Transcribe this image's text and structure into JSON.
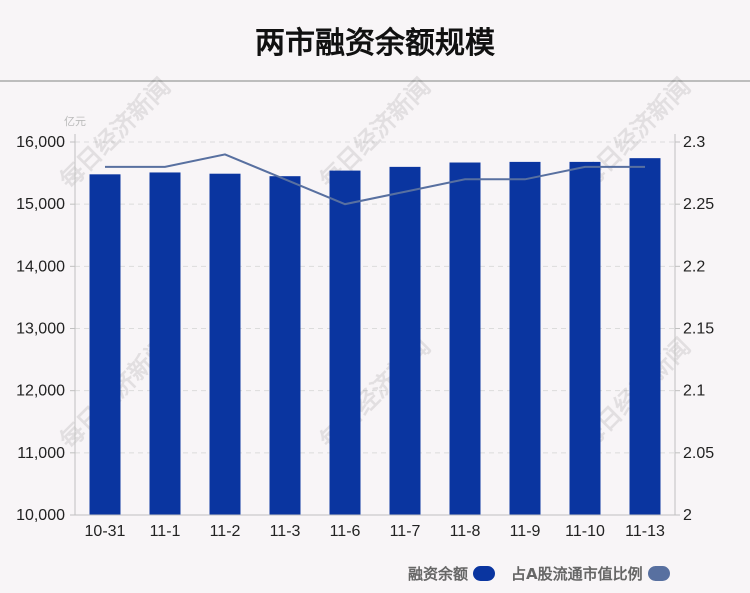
{
  "header": {
    "title": "两市融资余额规模"
  },
  "colors": {
    "bar": "#0a35a0",
    "line": "#5870a0",
    "grid": "#dcdcdc",
    "axis": "#c0c0c0"
  },
  "chart_data": {
    "type": "bar+line",
    "title": "两市融资余额规模",
    "categories": [
      "10-31",
      "11-1",
      "11-2",
      "11-3",
      "11-6",
      "11-7",
      "11-8",
      "11-9",
      "11-10",
      "11-13"
    ],
    "y_left_unit": "亿元",
    "y_left_lim": [
      10000,
      16000
    ],
    "y_left_ticks": [
      "10,000",
      "11,000",
      "12,000",
      "13,000",
      "14,000",
      "15,000",
      "16,000"
    ],
    "y_right_lim": [
      2,
      2.3
    ],
    "y_right_ticks": [
      "2",
      "2.05",
      "2.1",
      "2.15",
      "2.2",
      "2.25",
      "2.3"
    ],
    "grid": true,
    "legend_position": "bottom-right",
    "series": [
      {
        "name": "融资余额",
        "type": "bar",
        "axis": "left",
        "values": [
          15480,
          15510,
          15490,
          15450,
          15540,
          15600,
          15670,
          15680,
          15680,
          15740
        ]
      },
      {
        "name": "占A股流通市值比例",
        "type": "line",
        "axis": "right",
        "values": [
          2.28,
          2.28,
          2.29,
          2.27,
          2.25,
          2.26,
          2.27,
          2.27,
          2.28,
          2.28
        ]
      }
    ]
  }
}
